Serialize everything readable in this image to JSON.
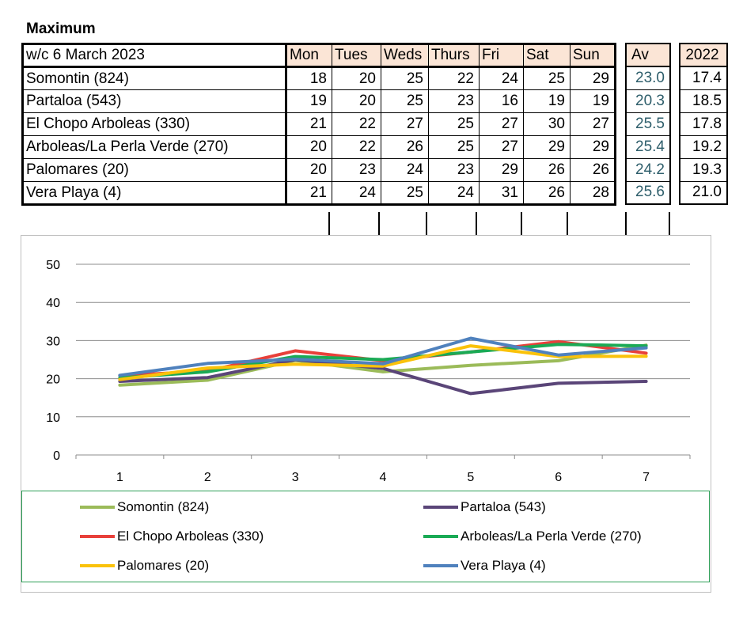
{
  "title": "Maximum",
  "week_label": "w/c  6 March 2023",
  "days": [
    "Mon",
    "Tues",
    "Weds",
    "Thurs",
    "Fri",
    "Sat",
    "Sun"
  ],
  "av_header": "Av",
  "prev_header": "2022",
  "rows": [
    {
      "location": "Somontin (824)",
      "values": [
        "18",
        "20",
        "25",
        "22",
        "24",
        "25",
        "29"
      ],
      "av": "23.0",
      "prev": "17.4"
    },
    {
      "location": "Partaloa (543)",
      "values": [
        "19",
        "20",
        "25",
        "23",
        "16",
        "19",
        "19"
      ],
      "av": "20.3",
      "prev": "18.5"
    },
    {
      "location": "El Chopo  Arboleas (330)",
      "values": [
        "21",
        "22",
        "27",
        "25",
        "27",
        "30",
        "27"
      ],
      "av": "25.5",
      "prev": "17.8"
    },
    {
      "location": "Arboleas/La Perla Verde (270)",
      "values": [
        "20",
        "22",
        "26",
        "25",
        "27",
        "29",
        "29"
      ],
      "av": "25.4",
      "prev": "19.2"
    },
    {
      "location": "Palomares (20)",
      "values": [
        "20",
        "23",
        "24",
        "23",
        "29",
        "26",
        "26"
      ],
      "av": "24.2",
      "prev": "19.3"
    },
    {
      "location": "Vera Playa (4)",
      "values": [
        "21",
        "24",
        "25",
        "24",
        "31",
        "26",
        "28"
      ],
      "av": "25.6",
      "prev": "21.0"
    }
  ],
  "chart_data": {
    "type": "line",
    "x": [
      1,
      2,
      3,
      4,
      5,
      6,
      7
    ],
    "ylim": [
      0,
      50
    ],
    "yticks": [
      0,
      10,
      20,
      30,
      40,
      50
    ],
    "grid": true,
    "legend_position": "bottom",
    "series": [
      {
        "name": "Somontin (824)",
        "color": "#9bbb59",
        "values": [
          18.3,
          19.6,
          24.8,
          21.8,
          23.5,
          24.7,
          28.8
        ]
      },
      {
        "name": "Partaloa (543)",
        "color": "#5a4578",
        "values": [
          19.3,
          20.3,
          25.0,
          22.7,
          16.1,
          18.8,
          19.3
        ]
      },
      {
        "name": "El Chopo  Arboleas (330)",
        "color": "#e8403a",
        "values": [
          20.8,
          22.0,
          27.3,
          24.7,
          27.0,
          29.7,
          26.7
        ]
      },
      {
        "name": "Arboleas/La Perla Verde (270)",
        "color": "#1aaa55",
        "values": [
          20.2,
          21.8,
          25.8,
          25.0,
          27.0,
          29.0,
          28.6
        ]
      },
      {
        "name": "Palomares (20)",
        "color": "#fac20a",
        "values": [
          19.8,
          22.8,
          23.8,
          23.3,
          28.6,
          25.8,
          25.9
        ]
      },
      {
        "name": "Vera Playa (4)",
        "color": "#4f81bd",
        "values": [
          20.9,
          24.0,
          25.1,
          23.9,
          30.6,
          26.2,
          28.1
        ]
      }
    ]
  }
}
